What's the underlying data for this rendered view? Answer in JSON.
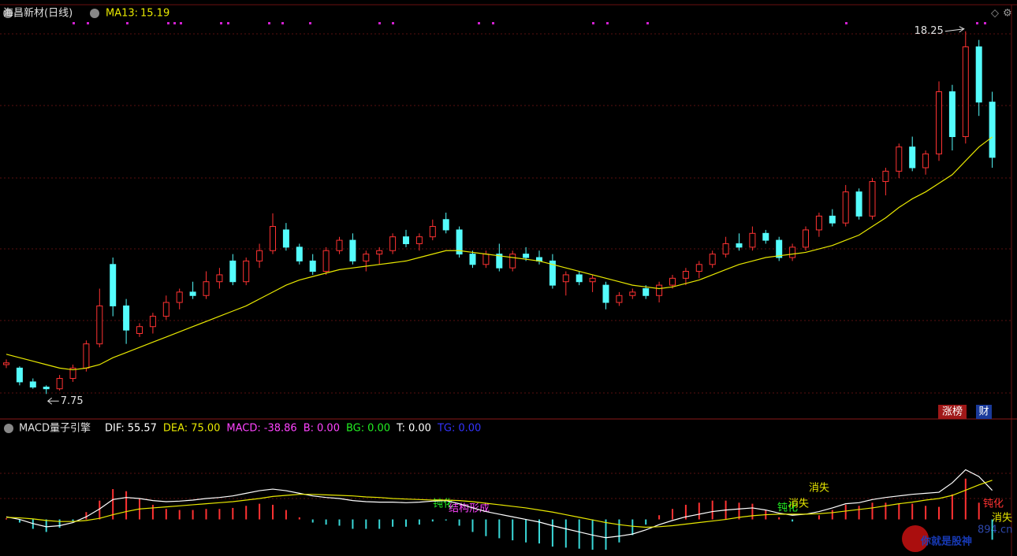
{
  "chart_data": [
    {
      "type": "candlestick",
      "title": "海昌新材(日线)",
      "ylim": [
        7.3,
        18.7
      ],
      "up_color": "#ff3232",
      "down_color": "#54fcfc",
      "open": [
        8.6,
        8.5,
        8.1,
        7.95,
        7.9,
        8.2,
        8.5,
        9.2,
        11.5,
        10.3,
        9.5,
        9.7,
        10.0,
        10.4,
        10.7,
        10.6,
        11.0,
        11.6,
        11.0,
        11.6,
        11.9,
        12.5,
        12.0,
        11.6,
        11.3,
        11.9,
        12.2,
        11.6,
        11.8,
        11.9,
        12.3,
        12.1,
        12.3,
        12.8,
        12.5,
        11.8,
        11.5,
        11.8,
        11.4,
        11.8,
        11.7,
        11.6,
        11.0,
        11.2,
        11.0,
        10.9,
        10.4,
        10.6,
        10.8,
        10.6,
        10.9,
        11.1,
        11.3,
        11.5,
        11.8,
        12.1,
        12.0,
        12.4,
        12.2,
        11.7,
        12.0,
        12.5,
        12.9,
        12.7,
        13.6,
        12.9,
        13.9,
        14.2,
        14.9,
        14.3,
        14.7,
        16.5,
        15.2,
        17.8,
        16.2
      ],
      "high": [
        8.75,
        8.55,
        8.2,
        8.0,
        8.3,
        8.6,
        9.3,
        10.8,
        11.7,
        10.5,
        9.8,
        10.1,
        10.6,
        10.8,
        11.0,
        11.3,
        11.4,
        11.8,
        11.7,
        12.1,
        12.98,
        12.7,
        12.1,
        11.8,
        12.0,
        12.3,
        12.4,
        11.9,
        12.0,
        12.4,
        12.5,
        12.4,
        12.8,
        13.0,
        12.6,
        11.9,
        11.9,
        12.1,
        11.9,
        12.0,
        11.9,
        11.8,
        11.3,
        11.3,
        11.2,
        11.0,
        10.7,
        10.8,
        10.9,
        11.0,
        11.2,
        11.4,
        11.6,
        11.9,
        12.3,
        12.4,
        12.6,
        12.5,
        12.3,
        12.1,
        12.6,
        13.0,
        13.1,
        13.8,
        13.7,
        14.0,
        14.3,
        15.0,
        15.2,
        14.8,
        16.8,
        16.7,
        18.25,
        18.0,
        16.5
      ],
      "low": [
        8.5,
        8.0,
        7.9,
        7.75,
        7.85,
        8.1,
        8.4,
        9.1,
        10.0,
        9.2,
        9.4,
        9.5,
        9.9,
        10.2,
        10.5,
        10.5,
        10.8,
        10.9,
        10.9,
        11.4,
        11.8,
        11.9,
        11.5,
        11.2,
        11.2,
        11.8,
        11.5,
        11.3,
        11.5,
        11.8,
        12.0,
        11.9,
        12.2,
        12.4,
        11.7,
        11.4,
        11.4,
        11.3,
        11.3,
        11.6,
        11.5,
        10.8,
        10.6,
        10.9,
        10.7,
        10.2,
        10.3,
        10.5,
        10.5,
        10.4,
        10.8,
        10.9,
        11.1,
        11.4,
        11.7,
        11.9,
        11.9,
        12.1,
        11.6,
        11.6,
        11.9,
        12.3,
        12.6,
        12.6,
        12.8,
        12.8,
        13.5,
        14.0,
        14.2,
        14.1,
        14.5,
        14.8,
        15.0,
        15.8,
        14.3
      ],
      "close": [
        8.65,
        8.1,
        7.95,
        7.9,
        8.2,
        8.5,
        9.2,
        10.3,
        10.3,
        9.6,
        9.7,
        10.0,
        10.4,
        10.7,
        10.6,
        11.0,
        11.2,
        11.0,
        11.6,
        11.9,
        12.6,
        12.0,
        11.6,
        11.3,
        11.9,
        12.2,
        11.6,
        11.8,
        11.9,
        12.3,
        12.1,
        12.3,
        12.6,
        12.5,
        11.8,
        11.5,
        11.8,
        11.4,
        11.8,
        11.7,
        11.6,
        10.9,
        11.2,
        11.0,
        11.1,
        10.4,
        10.6,
        10.7,
        10.6,
        10.9,
        11.1,
        11.3,
        11.5,
        11.8,
        12.1,
        12.0,
        12.4,
        12.2,
        11.7,
        12.0,
        12.5,
        12.9,
        12.7,
        13.6,
        12.9,
        13.9,
        14.2,
        14.9,
        14.3,
        14.7,
        16.5,
        15.2,
        17.8,
        16.2,
        14.6
      ],
      "series": [
        {
          "name": "MA13:",
          "color": "#e8e800",
          "last": 15.19,
          "values": [
            8.9,
            8.8,
            8.7,
            8.6,
            8.5,
            8.45,
            8.5,
            8.6,
            8.8,
            8.95,
            9.1,
            9.25,
            9.4,
            9.55,
            9.7,
            9.85,
            10.0,
            10.15,
            10.3,
            10.5,
            10.7,
            10.9,
            11.05,
            11.15,
            11.25,
            11.35,
            11.4,
            11.45,
            11.5,
            11.55,
            11.6,
            11.7,
            11.8,
            11.9,
            11.9,
            11.85,
            11.8,
            11.75,
            11.7,
            11.65,
            11.6,
            11.5,
            11.4,
            11.3,
            11.2,
            11.1,
            11.0,
            10.9,
            10.85,
            10.8,
            10.85,
            10.95,
            11.05,
            11.2,
            11.35,
            11.5,
            11.6,
            11.7,
            11.75,
            11.8,
            11.85,
            11.95,
            12.05,
            12.2,
            12.35,
            12.6,
            12.85,
            13.15,
            13.4,
            13.6,
            13.85,
            14.1,
            14.5,
            14.9,
            15.19
          ]
        }
      ],
      "annotations": [
        {
          "value": 18.25,
          "index": 72
        },
        {
          "value": 7.75,
          "index": 3
        }
      ],
      "buttons": [
        "涨榜",
        "财"
      ]
    },
    {
      "type": "macd",
      "title": "MACD量子引擎",
      "ylim": [
        -70,
        150
      ],
      "indicators": [
        {
          "name": "DIF:",
          "value": 55.57,
          "color": "#ffffff"
        },
        {
          "name": "DEA:",
          "value": {
            "value": 75,
            "label": "75.00"
          },
          "color": "#e8e800"
        },
        {
          "name": "MACD:",
          "value": -38.86,
          "color": "#ff44ff"
        },
        {
          "name": "B:",
          "value": {
            "value": 0,
            "label": "0.00"
          },
          "color": "#ff44ff"
        },
        {
          "name": "BG:",
          "value": {
            "value": 0,
            "label": "0.00"
          },
          "color": "#22ee22"
        },
        {
          "name": "T:",
          "value": {
            "value": 0,
            "label": "0.00"
          },
          "color": "#ffffff"
        },
        {
          "name": "TG:",
          "value": {
            "value": 0,
            "label": "0.00"
          },
          "color": "#3333ff"
        }
      ],
      "histogram": [
        2,
        -6,
        -18,
        -24,
        -16,
        -4,
        14,
        36,
        58,
        54,
        40,
        28,
        20,
        18,
        18,
        20,
        20,
        22,
        26,
        30,
        28,
        18,
        4,
        -6,
        -10,
        -12,
        -18,
        -18,
        -18,
        -14,
        -14,
        -10,
        -4,
        -2,
        -12,
        -24,
        -32,
        -36,
        -40,
        -44,
        -46,
        -52,
        -54,
        -56,
        -58,
        -58,
        -44,
        -30,
        -10,
        8,
        20,
        28,
        32,
        36,
        36,
        32,
        30,
        18,
        4,
        -4,
        0,
        8,
        18,
        28,
        26,
        32,
        32,
        30,
        30,
        26,
        24,
        48,
        78,
        32,
        -38.86
      ],
      "series": [
        {
          "name": "DIF",
          "color": "#ffffff",
          "values": [
            5,
            0,
            -8,
            -14,
            -12,
            -6,
            5,
            20,
            38,
            42,
            40,
            36,
            34,
            35,
            37,
            40,
            42,
            45,
            50,
            55,
            58,
            55,
            50,
            45,
            42,
            40,
            36,
            34,
            33,
            33,
            32,
            33,
            35,
            36,
            30,
            22,
            15,
            10,
            5,
            0,
            -5,
            -12,
            -18,
            -24,
            -30,
            -35,
            -32,
            -28,
            -20,
            -10,
            -2,
            5,
            10,
            15,
            18,
            20,
            22,
            18,
            12,
            8,
            10,
            15,
            22,
            30,
            32,
            38,
            42,
            45,
            48,
            50,
            52,
            70,
            95,
            82,
            55.57
          ]
        },
        {
          "name": "DEA",
          "color": "#e8e800",
          "values": [
            4,
            3,
            1,
            -2,
            -4,
            -4,
            -2,
            2,
            9,
            15,
            20,
            22,
            24,
            26,
            28,
            30,
            32,
            34,
            37,
            40,
            44,
            46,
            48,
            48,
            47,
            46,
            45,
            43,
            42,
            40,
            39,
            38,
            37,
            37,
            36,
            34,
            31,
            28,
            25,
            22,
            18,
            14,
            9,
            4,
            -1,
            -6,
            -10,
            -13,
            -15,
            -14,
            -12,
            -9,
            -6,
            -3,
            0,
            4,
            7,
            9,
            10,
            10,
            10,
            11,
            13,
            16,
            19,
            22,
            26,
            30,
            33,
            37,
            40,
            46,
            56,
            66,
            75
          ]
        }
      ],
      "annotations": [
        {
          "text": "钝化",
          "color": "#22ee22"
        },
        {
          "text": "结构形成",
          "color": "#ff44ff"
        },
        {
          "text": "钝化",
          "color": "#22ee22"
        },
        {
          "text": "消失",
          "color": "#e8e800"
        },
        {
          "text": "消失",
          "color": "#e8e800"
        },
        {
          "text": "钝化",
          "color": "#ff3232"
        },
        {
          "text": "消失",
          "color": "#e8e800"
        }
      ]
    }
  ],
  "watermark": {
    "text": "你就是股神",
    "site": "894.cn"
  }
}
